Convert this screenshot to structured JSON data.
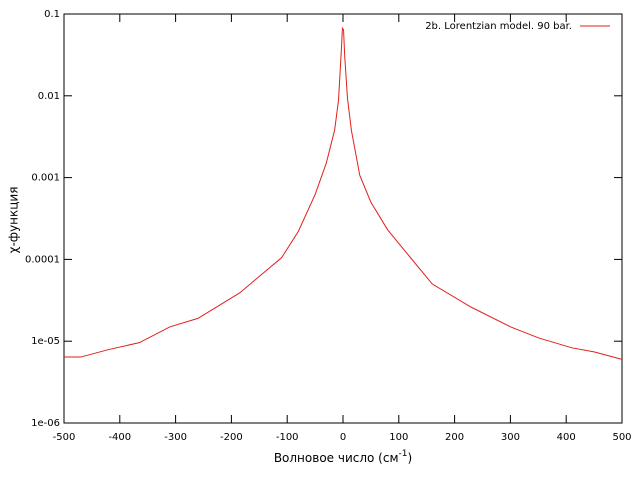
{
  "chart_data": {
    "type": "line",
    "xlabel": [
      "Волновое число (см",
      "-1",
      ")"
    ],
    "ylabel": "χ-функция",
    "x": [
      -500,
      -470,
      -420,
      -365,
      -310,
      -260,
      -185,
      -150,
      -110,
      -80,
      -50,
      -30,
      -15,
      -8,
      -3,
      -1,
      1,
      3,
      8,
      15,
      30,
      50,
      80,
      120,
      160,
      230,
      300,
      350,
      410,
      450,
      500
    ],
    "series": [
      {
        "name": "2b. Lorentzian  model. 90 bar.",
        "color": "#e0201b",
        "values": [
          6.4e-06,
          6.4e-06,
          7.9e-06,
          9.6e-06,
          1.5e-05,
          1.9e-05,
          3.9e-05,
          6.2e-05,
          0.000105,
          0.00022,
          0.00062,
          0.0015,
          0.0038,
          0.0089,
          0.036,
          0.067,
          0.064,
          0.031,
          0.0094,
          0.0038,
          0.00107,
          0.0005,
          0.00023,
          0.000107,
          5e-05,
          2.6e-05,
          1.5e-05,
          1.1e-05,
          8.3e-06,
          7.4e-06,
          6e-06
        ]
      }
    ],
    "xlim": [
      -500,
      500
    ],
    "xticks": [
      -500,
      -400,
      -300,
      -200,
      -100,
      0,
      100,
      200,
      300,
      400,
      500
    ],
    "ylim": [
      1e-06,
      0.1
    ],
    "yticks": [
      {
        "value": 1e-06,
        "label": "1e-06"
      },
      {
        "value": 1e-05,
        "label": "1e-05"
      },
      0.0001,
      0.001,
      0.01,
      0.1
    ],
    "log_y": true,
    "legend": "top-right"
  }
}
